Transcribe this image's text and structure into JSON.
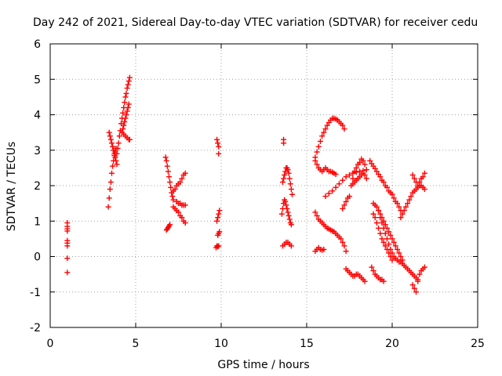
{
  "chart_data": {
    "type": "scatter",
    "title": "Day 242 of 2021, Sidereal Day-to-day VTEC variation (SDTVAR) for receiver cedu",
    "xlabel": "GPS time / hours",
    "ylabel": "SDTVAR / TECUs",
    "xlim": [
      0,
      25
    ],
    "ylim": [
      -2,
      6
    ],
    "xticks": [
      "0",
      "5",
      "10",
      "15",
      "20",
      "25"
    ],
    "yticks": [
      "-2",
      "-1",
      "0",
      "1",
      "2",
      "3",
      "4",
      "5",
      "6"
    ],
    "grid": true,
    "marker": "plus",
    "marker_color": "#ff0000",
    "series": [
      {
        "segments": [
          {
            "x": [
              1.0,
              1.0,
              1.0,
              1.0,
              1.0,
              1.0,
              1.0,
              1.0,
              1.0
            ],
            "y": [
              0.95,
              0.85,
              0.78,
              0.72,
              0.45,
              0.38,
              0.3,
              -0.05,
              -0.45
            ]
          },
          {
            "x": [
              3.4,
              3.45,
              3.5,
              3.55,
              3.6,
              3.65,
              3.7,
              3.75,
              3.8,
              3.85
            ],
            "y": [
              1.4,
              1.65,
              1.9,
              2.1,
              2.35,
              2.55,
              2.7,
              2.85,
              2.95,
              3.05
            ]
          },
          {
            "x": [
              3.45,
              3.5,
              3.55,
              3.6,
              3.65,
              3.7,
              3.75,
              3.8,
              3.85,
              3.9
            ],
            "y": [
              3.5,
              3.4,
              3.3,
              3.2,
              3.1,
              3.0,
              2.9,
              2.8,
              2.7,
              2.6
            ]
          },
          {
            "x": [
              3.9,
              3.95,
              4.0,
              4.05,
              4.1,
              4.15,
              4.2,
              4.25,
              4.3,
              4.35,
              4.4,
              4.45,
              4.5,
              4.55,
              4.6,
              4.65
            ],
            "y": [
              2.9,
              3.05,
              3.2,
              3.4,
              3.55,
              3.75,
              3.9,
              4.05,
              4.2,
              4.35,
              4.5,
              4.6,
              4.75,
              4.85,
              4.95,
              5.05
            ]
          },
          {
            "x": [
              4.2,
              4.25,
              4.3,
              4.35,
              4.4,
              4.45,
              4.5,
              4.55,
              4.6
            ],
            "y": [
              3.5,
              3.6,
              3.7,
              3.8,
              3.9,
              4.0,
              4.1,
              4.2,
              4.3
            ]
          },
          {
            "x": [
              4.3,
              4.4,
              4.5,
              4.6,
              4.65
            ],
            "y": [
              3.45,
              3.4,
              3.35,
              3.3,
              3.3
            ]
          },
          {
            "x": [
              6.75,
              6.8,
              6.85,
              6.9,
              6.95,
              7.0,
              7.05,
              7.1,
              7.15,
              7.2
            ],
            "y": [
              2.8,
              2.7,
              2.55,
              2.4,
              2.25,
              2.1,
              1.95,
              1.8,
              1.7,
              1.6
            ]
          },
          {
            "x": [
              6.8,
              6.85,
              6.9,
              6.95,
              7.0
            ],
            "y": [
              0.75,
              0.78,
              0.82,
              0.86,
              0.9
            ]
          },
          {
            "x": [
              7.2,
              7.3,
              7.4,
              7.5,
              7.6,
              7.7,
              7.8,
              7.9
            ],
            "y": [
              1.85,
              1.9,
              2.0,
              2.05,
              2.1,
              2.2,
              2.3,
              2.35
            ]
          },
          {
            "x": [
              7.2,
              7.3,
              7.4,
              7.5,
              7.6,
              7.7,
              7.8,
              7.9
            ],
            "y": [
              1.4,
              1.35,
              1.3,
              1.25,
              1.15,
              1.1,
              1.0,
              0.95
            ]
          },
          {
            "x": [
              7.4,
              7.5,
              7.6,
              7.7,
              7.8,
              7.9
            ],
            "y": [
              1.55,
              1.5,
              1.5,
              1.45,
              1.45,
              1.45
            ]
          },
          {
            "x": [
              9.75,
              9.8,
              9.85,
              9.85
            ],
            "y": [
              3.3,
              3.2,
              3.1,
              2.9
            ]
          },
          {
            "x": [
              9.75,
              9.8,
              9.85,
              9.9,
              9.8,
              9.85,
              9.9
            ],
            "y": [
              1.0,
              1.1,
              1.2,
              1.3,
              0.6,
              0.65,
              0.7
            ]
          },
          {
            "x": [
              9.7,
              9.75,
              9.8,
              9.85
            ],
            "y": [
              0.25,
              0.3,
              0.28,
              0.3
            ]
          },
          {
            "x": [
              13.65,
              13.65
            ],
            "y": [
              3.3,
              3.2
            ]
          },
          {
            "x": [
              13.6,
              13.65,
              13.7,
              13.75,
              13.8,
              13.85,
              13.9,
              13.95,
              14.0,
              14.05,
              14.1,
              14.15
            ],
            "y": [
              2.1,
              2.2,
              2.3,
              2.4,
              2.5,
              2.5,
              2.45,
              2.35,
              2.2,
              2.05,
              1.9,
              1.75
            ]
          },
          {
            "x": [
              13.55,
              13.6,
              13.65,
              13.7,
              13.75,
              13.8,
              13.85,
              13.9,
              13.95,
              14.0,
              14.05,
              14.1
            ],
            "y": [
              1.2,
              1.35,
              1.5,
              1.6,
              1.55,
              1.45,
              1.35,
              1.25,
              1.15,
              1.05,
              0.95,
              0.9
            ]
          },
          {
            "x": [
              13.6,
              13.7,
              13.8,
              13.9,
              14.0,
              14.1
            ],
            "y": [
              0.3,
              0.35,
              0.4,
              0.4,
              0.35,
              0.3
            ]
          },
          {
            "x": [
              15.5,
              15.6,
              15.7,
              15.8,
              15.9,
              16.0,
              16.1,
              16.2,
              16.3,
              16.4,
              16.5,
              16.6,
              16.7,
              16.8,
              16.9,
              17.0,
              17.1,
              17.2
            ],
            "y": [
              2.8,
              2.95,
              3.1,
              3.25,
              3.4,
              3.5,
              3.6,
              3.7,
              3.78,
              3.85,
              3.9,
              3.9,
              3.88,
              3.85,
              3.8,
              3.75,
              3.7,
              3.6
            ]
          },
          {
            "x": [
              15.5,
              15.6,
              15.7,
              15.8,
              15.9,
              16.0,
              16.1,
              16.2,
              16.3,
              16.4,
              16.5,
              16.6,
              16.7
            ],
            "y": [
              2.7,
              2.6,
              2.5,
              2.45,
              2.4,
              2.45,
              2.5,
              2.45,
              2.4,
              2.4,
              2.38,
              2.35,
              2.32
            ]
          },
          {
            "x": [
              15.5,
              15.6,
              15.7,
              15.8,
              15.9,
              16.0,
              16.1,
              16.2,
              16.3,
              16.4,
              16.5,
              16.6,
              16.7,
              16.8,
              16.9,
              17.0,
              17.1,
              17.2,
              17.3
            ],
            "y": [
              1.25,
              1.15,
              1.05,
              1.0,
              0.95,
              0.9,
              0.85,
              0.8,
              0.78,
              0.75,
              0.72,
              0.7,
              0.65,
              0.6,
              0.55,
              0.5,
              0.4,
              0.3,
              0.15
            ]
          },
          {
            "x": [
              15.5,
              15.6,
              15.7,
              15.8,
              15.9,
              16.0
            ],
            "y": [
              0.15,
              0.2,
              0.25,
              0.2,
              0.18,
              0.2
            ]
          },
          {
            "x": [
              16.1,
              16.3,
              16.5,
              16.7,
              16.9,
              17.1,
              17.3,
              17.5,
              17.7,
              17.9,
              18.1,
              18.3,
              18.5
            ],
            "y": [
              1.7,
              1.78,
              1.85,
              1.95,
              2.05,
              2.15,
              2.25,
              2.3,
              2.35,
              2.38,
              2.4,
              2.42,
              2.45
            ]
          },
          {
            "x": [
              17.1,
              17.2,
              17.3,
              17.4,
              17.5
            ],
            "y": [
              1.35,
              1.45,
              1.55,
              1.65,
              1.7
            ]
          },
          {
            "x": [
              17.6,
              17.7,
              17.8,
              17.9,
              18.0,
              18.1,
              18.2,
              18.3,
              18.4
            ],
            "y": [
              2.0,
              2.2,
              2.4,
              2.5,
              2.6,
              2.65,
              2.75,
              2.7,
              2.6
            ]
          },
          {
            "x": [
              17.7,
              17.8,
              17.9,
              18.0,
              18.1,
              18.2,
              18.3,
              18.4,
              18.5
            ],
            "y": [
              2.05,
              2.1,
              2.15,
              2.2,
              2.25,
              2.3,
              2.35,
              2.3,
              2.2
            ]
          },
          {
            "x": [
              17.3,
              17.4,
              17.5,
              17.6,
              17.7,
              17.8,
              17.9,
              18.0,
              18.1,
              18.2,
              18.3,
              18.4
            ],
            "y": [
              -0.35,
              -0.4,
              -0.45,
              -0.5,
              -0.55,
              -0.55,
              -0.5,
              -0.5,
              -0.55,
              -0.6,
              -0.65,
              -0.7
            ]
          },
          {
            "x": [
              18.7,
              18.8,
              18.9,
              19.0,
              19.1,
              19.2,
              19.3,
              19.4,
              19.5,
              19.6,
              19.7,
              19.8,
              19.9,
              20.0,
              20.1,
              20.2,
              20.3,
              20.4,
              20.5
            ],
            "y": [
              2.7,
              2.62,
              2.55,
              2.48,
              2.4,
              2.32,
              2.25,
              2.15,
              2.1,
              2.0,
              1.95,
              1.85,
              1.8,
              1.75,
              1.65,
              1.55,
              1.5,
              1.4,
              1.3
            ]
          },
          {
            "x": [
              18.9,
              19.0,
              19.1,
              19.2,
              19.3,
              19.4,
              19.5,
              19.6,
              19.7,
              19.8,
              19.9,
              20.0,
              20.1,
              20.2,
              20.3,
              20.4,
              20.5,
              20.6
            ],
            "y": [
              1.5,
              1.45,
              1.4,
              1.3,
              1.2,
              1.1,
              1.0,
              0.9,
              0.8,
              0.7,
              0.6,
              0.5,
              0.4,
              0.3,
              0.2,
              0.1,
              0.0,
              -0.1
            ]
          },
          {
            "x": [
              18.9,
              19.0,
              19.1,
              19.2,
              19.3,
              19.4,
              19.5,
              19.6,
              19.7,
              19.8,
              19.9,
              20.0
            ],
            "y": [
              1.2,
              1.1,
              0.95,
              0.8,
              0.65,
              0.5,
              0.4,
              0.3,
              0.2,
              0.1,
              0.0,
              -0.1
            ]
          },
          {
            "x": [
              19.2,
              19.3,
              19.4,
              19.5,
              19.6,
              19.7,
              19.8,
              19.9,
              20.0,
              20.1,
              20.2,
              20.3,
              20.4,
              20.5,
              20.6,
              20.7,
              20.8,
              20.9,
              21.0,
              21.1,
              21.2,
              21.3,
              21.4,
              21.5
            ],
            "y": [
              1.3,
              1.1,
              0.95,
              0.8,
              0.65,
              0.5,
              0.35,
              0.2,
              0.1,
              0.0,
              -0.05,
              -0.1,
              -0.15,
              -0.15,
              -0.2,
              -0.25,
              -0.3,
              -0.35,
              -0.4,
              -0.45,
              -0.5,
              -0.55,
              -0.6,
              -0.65
            ]
          },
          {
            "x": [
              18.8,
              18.9,
              19.0,
              19.1,
              19.2,
              19.3,
              19.4,
              19.5
            ],
            "y": [
              -0.3,
              -0.4,
              -0.5,
              -0.55,
              -0.6,
              -0.65,
              -0.65,
              -0.7
            ]
          },
          {
            "x": [
              20.5,
              20.6,
              20.7,
              20.8,
              20.9,
              21.0,
              21.1,
              21.2,
              21.3,
              21.4,
              21.5,
              21.6,
              21.7,
              21.8,
              21.9
            ],
            "y": [
              1.1,
              1.2,
              1.3,
              1.4,
              1.5,
              1.6,
              1.7,
              1.8,
              1.85,
              1.9,
              1.95,
              2.0,
              2.0,
              1.95,
              1.9
            ]
          },
          {
            "x": [
              21.2,
              21.3,
              21.4,
              21.5,
              21.6,
              21.7,
              21.8,
              21.9
            ],
            "y": [
              2.3,
              2.2,
              2.1,
              2.0,
              2.1,
              2.2,
              2.25,
              2.35
            ]
          },
          {
            "x": [
              21.2,
              21.3,
              21.4,
              21.5,
              21.6,
              21.7,
              21.8,
              21.9
            ],
            "y": [
              -0.8,
              -0.9,
              -1.0,
              -0.7,
              -0.5,
              -0.4,
              -0.35,
              -0.3
            ]
          }
        ]
      }
    ]
  }
}
